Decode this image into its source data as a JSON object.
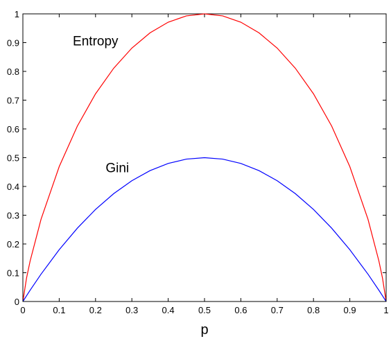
{
  "chart_data": {
    "type": "line",
    "title": "",
    "xlabel": "p",
    "ylabel": "",
    "xlim": [
      0,
      1
    ],
    "ylim": [
      0,
      1
    ],
    "grid": false,
    "x_ticks": [
      "0",
      "0.1",
      "0.2",
      "0.3",
      "0.4",
      "0.5",
      "0.6",
      "0.7",
      "0.8",
      "0.9",
      "1"
    ],
    "y_ticks": [
      "0",
      "0.1",
      "0.2",
      "0.3",
      "0.4",
      "0.5",
      "0.6",
      "0.7",
      "0.8",
      "0.9",
      "1"
    ],
    "x": [
      0,
      0.01,
      0.02,
      0.05,
      0.1,
      0.15,
      0.2,
      0.25,
      0.3,
      0.35,
      0.4,
      0.45,
      0.5,
      0.55,
      0.6,
      0.65,
      0.7,
      0.75,
      0.8,
      0.85,
      0.9,
      0.95,
      0.98,
      0.99,
      1
    ],
    "series": [
      {
        "name": "Entropy",
        "color": "#ff0000",
        "values": [
          0,
          0.081,
          0.141,
          0.286,
          0.469,
          0.61,
          0.722,
          0.811,
          0.881,
          0.934,
          0.971,
          0.993,
          1,
          0.993,
          0.971,
          0.934,
          0.881,
          0.811,
          0.722,
          0.61,
          0.469,
          0.286,
          0.141,
          0.081,
          0
        ]
      },
      {
        "name": "Gini",
        "color": "#0000ff",
        "values": [
          0,
          0.0198,
          0.0392,
          0.095,
          0.18,
          0.255,
          0.32,
          0.375,
          0.42,
          0.455,
          0.48,
          0.495,
          0.5,
          0.495,
          0.48,
          0.455,
          0.42,
          0.375,
          0.32,
          0.255,
          0.18,
          0.095,
          0.0392,
          0.0198,
          0
        ]
      }
    ],
    "annotations": [
      {
        "text": "Entropy",
        "x": 0.2,
        "y": 0.89
      },
      {
        "text": "Gini",
        "x": 0.26,
        "y": 0.45
      }
    ]
  }
}
